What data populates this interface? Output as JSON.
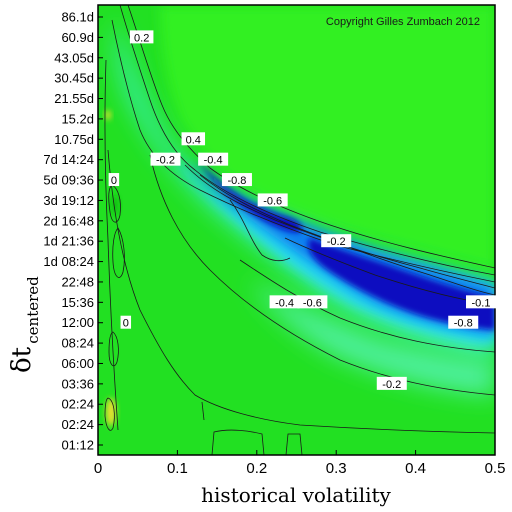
{
  "chart_data": {
    "type": "heatmap",
    "title": "",
    "xlabel": "historical volatility",
    "ylabel": "δt",
    "ylabel_subscript": "centered",
    "xlim": [
      0,
      0.5
    ],
    "x_ticks": [
      "0",
      "0.1",
      "0.2",
      "0.3",
      "0.4",
      "0.5"
    ],
    "y_ticks": [
      "86.1d",
      "60.9d",
      "43.05d",
      "30.45d",
      "21.55d",
      "15.2d",
      "10.75d",
      "7d 14:24",
      "5d 09:36",
      "3d 19:12",
      "2d 16:48",
      "1d 21:36",
      "1d 08:24",
      "22:48",
      "15:36",
      "12:00",
      "08:24",
      "06:00",
      "03:36",
      "02:24",
      "02:24",
      "01:12"
    ],
    "annotation": "Copyright Gilles Zumbach 2012",
    "colors": {
      "background_level_0": "#22e022",
      "level_minus_0_2": "#3cf0c0",
      "level_minus_0_4": "#28d8f0",
      "level_minus_0_6": "#1080f0",
      "level_minus_0_8": "#1010c0",
      "positive_level": "#e8e030"
    },
    "contour_labels": [
      {
        "text": "0.2",
        "x": 0.055,
        "t": "60.9d"
      },
      {
        "text": "0.4",
        "x": 0.12,
        "t": "10.75d"
      },
      {
        "text": "-0.4",
        "x": 0.145,
        "t": "7d 14:24"
      },
      {
        "text": "-0.2",
        "x": 0.085,
        "t": "7d 14:24"
      },
      {
        "text": "-0.8",
        "x": 0.175,
        "t": "5d 09:36"
      },
      {
        "text": "-0.6",
        "x": 0.22,
        "t": "3d 19:12"
      },
      {
        "text": "-0.2",
        "x": 0.3,
        "t": "1d 21:36"
      },
      {
        "text": "-0.6",
        "x": 0.27,
        "t": "15:36"
      },
      {
        "text": "-0.4",
        "x": 0.235,
        "t": "15:36"
      },
      {
        "text": "-0.8",
        "x": 0.46,
        "t": "12:00"
      },
      {
        "text": "-0.1",
        "x": 0.485,
        "t": "15:36"
      },
      {
        "text": "-0.2",
        "x": 0.37,
        "t": "03:36"
      },
      {
        "text": "0",
        "x": 0.035,
        "t": "12:00"
      },
      {
        "text": "0",
        "x": 0.02,
        "t": "5d 09:36"
      }
    ]
  }
}
